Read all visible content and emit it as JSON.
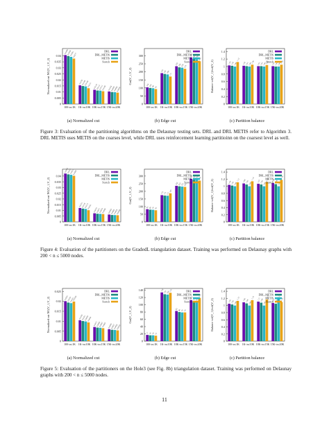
{
  "series_colors": [
    "#6a0dad",
    "#1f8a80",
    "#29b6c5",
    "#e8a317"
  ],
  "figures": [
    {
      "caption": "Figure 3: Evaluation of the partitioning algorithms on the Delaunay testing sets. DRL and DRL METIS refer to Algorithm 3. DRL METIS uses METIS on the coarses level, while DRL uses reinforcement learning partitioinn on the coarsest level as well.",
      "subcaptions": [
        "(a) Normalized cut",
        "(b) Edge cut",
        "(c) Partition balance"
      ],
      "charts": [
        {
          "type": "bar",
          "ylabel": "Normalized cut NC(V_1,V_2)",
          "ylim": [
            0,
            0.046
          ],
          "yticks": [
            "0",
            "0.005",
            "0.01",
            "0.015",
            "0.02",
            "0.025",
            "0.03",
            "0.035",
            "0.04"
          ],
          "ytick_values": [
            0,
            0.005,
            0.01,
            0.015,
            0.02,
            0.025,
            0.03,
            0.035,
            0.04
          ],
          "categories": [
            "100<n≤1K",
            "1K<n≤10K",
            "10K<n≤15K",
            "15K<n≤20K"
          ],
          "series": [
            {
              "name": "DRL",
              "values": [
                0.0406,
                0.0155,
                0.0118,
                0.0104
              ]
            },
            {
              "name": "DRL_METIS",
              "values": [
                0.0398,
                0.0149,
                0.0112,
                0.0099
              ]
            },
            {
              "name": "METIS",
              "values": [
                0.0391,
                0.0146,
                0.0111,
                0.0098
              ]
            },
            {
              "name": "Scotch",
              "values": [
                0.0377,
                0.0131,
                0.0106,
                0.0094
              ]
            }
          ]
        },
        {
          "type": "bar",
          "ylabel": "Cut(V_1,V_2)",
          "ylim": [
            0,
            345
          ],
          "yticks": [
            "0",
            "50",
            "100",
            "150",
            "200",
            "250",
            "300"
          ],
          "ytick_values": [
            0,
            50,
            100,
            150,
            200,
            250,
            300
          ],
          "categories": [
            "100<n≤1K",
            "1K<n≤10K",
            "10K<n≤15K",
            "15K<n≤20K"
          ],
          "series": [
            {
              "name": "DRL",
              "values": [
                104,
                192,
                235,
                290
              ]
            },
            {
              "name": "DRL_METIS",
              "values": [
                100,
                187,
                228,
                282
              ]
            },
            {
              "name": "METIS",
              "values": [
                98,
                184,
                226,
                278
              ]
            },
            {
              "name": "Scotch",
              "values": [
                93,
                171,
                219,
                266
              ]
            }
          ]
        },
        {
          "type": "bar",
          "ylabel": "Balance vol(V_1)/vol(V_2)",
          "ylim": [
            0,
            1.48
          ],
          "yticks": [
            "0",
            "0.2",
            "0.4",
            "0.6",
            "0.8",
            "1",
            "1.2",
            "1.4"
          ],
          "ytick_values": [
            0,
            0.2,
            0.4,
            0.6,
            0.8,
            1,
            1.2,
            1.4
          ],
          "categories": [
            "100<n≤1K",
            "1K<n≤10K",
            "10K<n≤15K",
            "15K<n≤20K"
          ],
          "series": [
            {
              "name": "DRL",
              "values": [
                1.03,
                1.02,
                1.01,
                1.01
              ]
            },
            {
              "name": "DRL_METIS",
              "values": [
                1.02,
                1.01,
                1.01,
                1.0
              ]
            },
            {
              "name": "METIS",
              "values": [
                1.0,
                1.0,
                1.0,
                1.0
              ]
            },
            {
              "name": "Scotch",
              "values": [
                1.12,
                1.05,
                1.04,
                1.05
              ]
            }
          ]
        }
      ]
    },
    {
      "caption": "Figure 4: Evaluation of the partitioners on the GradedL triangulation dataset. Training was performed on Delaunay graphs with 200 < n ≤ 5000 nodes.",
      "subcaptions": [
        "(a) Normalized cut",
        "(b) Edge cut",
        "(c) Partition balance"
      ],
      "charts": [
        {
          "type": "bar",
          "ylabel": "Normalized cut NC(V_1,V_2)",
          "ylim": [
            0,
            0.046
          ],
          "yticks": [
            "0",
            "0.005",
            "0.01",
            "0.015",
            "0.02",
            "0.025",
            "0.03",
            "0.035",
            "0.04"
          ],
          "ytick_values": [
            0,
            0.005,
            0.01,
            0.015,
            0.02,
            0.025,
            0.03,
            0.035,
            0.04
          ],
          "categories": [
            "100<n≤1K",
            "1K<n≤10K",
            "10K<n≤15K",
            "15K<n≤20K"
          ],
          "series": [
            {
              "name": "DRL",
              "values": [
                0.0422,
                0.0121,
                0.0075,
                0.0064
              ]
            },
            {
              "name": "DRL_METIS",
              "values": [
                0.0415,
                0.0116,
                0.0071,
                0.006
              ]
            },
            {
              "name": "METIS",
              "values": [
                0.0411,
                0.0113,
                0.007,
                0.0059
              ]
            },
            {
              "name": "Scotch",
              "values": [
                0.0402,
                0.0102,
                0.0068,
                0.0058
              ]
            }
          ]
        },
        {
          "type": "bar",
          "ylabel": "Cut(V_1,V_2)",
          "ylim": [
            0,
            345
          ],
          "yticks": [
            "0",
            "50",
            "100",
            "150",
            "200",
            "250",
            "300"
          ],
          "ytick_values": [
            0,
            50,
            100,
            150,
            200,
            250,
            300
          ],
          "categories": [
            "100<n≤1K",
            "1K<n≤10K",
            "10K<n≤15K",
            "15K<n≤20K"
          ],
          "series": [
            {
              "name": "DRL",
              "values": [
                83,
                175,
                236,
                282
              ]
            },
            {
              "name": "DRL_METIS",
              "values": [
                80,
                172,
                233,
                276
              ]
            },
            {
              "name": "METIS",
              "values": [
                79,
                171,
                231,
                275
              ]
            },
            {
              "name": "Scotch",
              "values": [
                76,
                187,
                229,
                270
              ]
            }
          ]
        },
        {
          "type": "bar",
          "ylabel": "Balance vol(V_1)/vol(V_2)",
          "ylim": [
            0,
            1.48
          ],
          "yticks": [
            "0",
            "0.2",
            "0.4",
            "0.6",
            "0.8",
            "1",
            "1.2",
            "1.4"
          ],
          "ytick_values": [
            0,
            0.2,
            0.4,
            0.6,
            0.8,
            1,
            1.2,
            1.4
          ],
          "categories": [
            "100<n≤1K",
            "1K<n≤10K",
            "10K<n≤15K",
            "15K<n≤20K"
          ],
          "series": [
            {
              "name": "DRL",
              "values": [
                1.04,
                1.08,
                1.07,
                1.09
              ]
            },
            {
              "name": "DRL_METIS",
              "values": [
                1.02,
                1.05,
                1.05,
                1.06
              ]
            },
            {
              "name": "METIS",
              "values": [
                1.0,
                1.0,
                1.0,
                1.0
              ]
            },
            {
              "name": "Scotch",
              "values": [
                1.11,
                1.14,
                1.12,
                1.18
              ]
            }
          ]
        }
      ]
    },
    {
      "caption": "Figure 5: Evaluation of the partitioners on the Hole3 (see Fig. 8b) triangulation dataset. Training was performed on Delaunay graphs with 200 < n ≤ 5000 nodes.",
      "subcaptions": [
        "(a) Normalized cut",
        "(b) Edge cut",
        "(c) Partition balance"
      ],
      "charts": [
        {
          "type": "bar",
          "ylabel": "Normalized cut NC(V_1,V_2)",
          "ylim": [
            0,
            0.0265
          ],
          "yticks": [
            "0",
            "0.005",
            "0.01",
            "0.015",
            "0.02",
            "0.025"
          ],
          "ytick_values": [
            0,
            0.005,
            0.01,
            0.015,
            0.02,
            0.025
          ],
          "categories": [
            "100<n≤1K",
            "1K<n≤10K",
            "10K<n≤15K",
            "15K<n≤20K"
          ],
          "series": [
            {
              "name": "DRL",
              "values": [
                0.0201,
                0.0105,
                0.0071,
                0.006
              ]
            },
            {
              "name": "DRL_METIS",
              "values": [
                0.0194,
                0.0101,
                0.0068,
                0.0057
              ]
            },
            {
              "name": "METIS",
              "values": [
                0.0191,
                0.0099,
                0.0067,
                0.0056
              ]
            },
            {
              "name": "Scotch",
              "values": [
                0.0199,
                0.0094,
                0.0065,
                0.0054
              ]
            }
          ]
        },
        {
          "type": "bar",
          "ylabel": "Cut(V_1,V_2)",
          "ylim": [
            0,
            145
          ],
          "yticks": [
            "0",
            "20",
            "40",
            "60",
            "80",
            "100",
            "120",
            "140"
          ],
          "ytick_values": [
            0,
            20,
            40,
            60,
            80,
            100,
            120,
            140
          ],
          "categories": [
            "100<n≤1K",
            "1K<n≤10K",
            "10K<n≤15K",
            "15K<n≤20K"
          ],
          "series": [
            {
              "name": "DRL",
              "values": [
                17,
                134,
                83,
                113
              ]
            },
            {
              "name": "DRL_METIS",
              "values": [
                16,
                129,
                80,
                110
              ]
            },
            {
              "name": "METIS",
              "values": [
                16,
                128,
                79,
                109
              ]
            },
            {
              "name": "Scotch",
              "values": [
                15,
                133,
                79,
                119
              ]
            }
          ]
        },
        {
          "type": "bar",
          "ylabel": "Balance vol(V_1)/vol(V_2)",
          "ylim": [
            0,
            1.48
          ],
          "yticks": [
            "0",
            "0.2",
            "0.4",
            "0.6",
            "0.8",
            "1",
            "1.2",
            "1.4"
          ],
          "ytick_values": [
            0,
            0.2,
            0.4,
            0.6,
            0.8,
            1,
            1.2,
            1.4
          ],
          "categories": [
            "100<n≤1K",
            "1K<n≤10K",
            "10K<n≤15K",
            "15K<n≤20K"
          ],
          "series": [
            {
              "name": "DRL",
              "values": [
                1.05,
                1.09,
                1.11,
                1.07
              ]
            },
            {
              "name": "DRL_METIS",
              "values": [
                1.03,
                1.06,
                1.08,
                1.05
              ]
            },
            {
              "name": "METIS",
              "values": [
                1.0,
                1.0,
                1.0,
                1.19
              ]
            },
            {
              "name": "Scotch",
              "values": [
                1.13,
                1.15,
                1.17,
                1.1
              ]
            }
          ]
        }
      ]
    }
  ],
  "page_number": "11"
}
